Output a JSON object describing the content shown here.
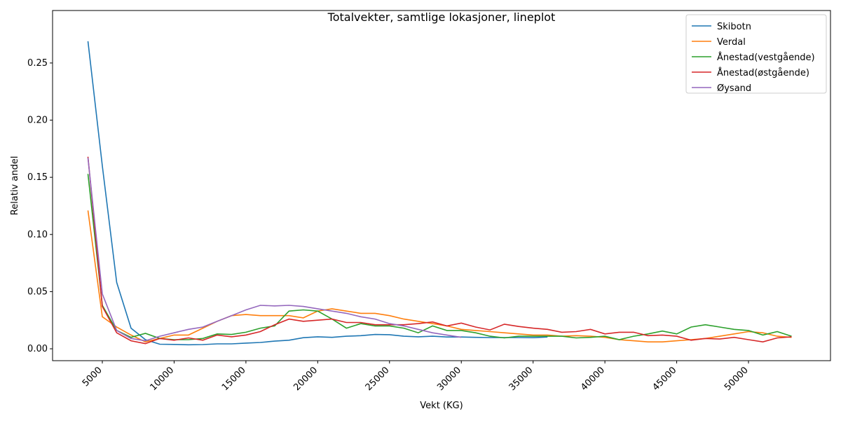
{
  "chart_data": {
    "type": "line",
    "title": "Totalvekter, samtlige lokasjoner, lineplot",
    "x_label": "Vekt (KG)",
    "y_label": "Relativ andel",
    "x": [
      4000,
      5000,
      6000,
      7000,
      8000,
      9000,
      10000,
      11000,
      12000,
      13000,
      14000,
      15000,
      16000,
      17000,
      18000,
      19000,
      20000,
      21000,
      22000,
      23000,
      24000,
      25000,
      26000,
      27000,
      28000,
      29000,
      30000,
      31000,
      32000,
      33000,
      34000,
      35000,
      36000,
      37000,
      38000,
      39000,
      40000,
      41000,
      42000,
      43000,
      44000,
      45000,
      46000,
      47000,
      48000,
      49000,
      50000,
      51000,
      52000,
      53000
    ],
    "series": [
      {
        "name": "Skibotn",
        "color": "#1f77b4",
        "values": [
          0.269,
          0.16,
          0.058,
          0.018,
          0.008,
          0.004,
          0.0038,
          0.0035,
          0.0037,
          0.0043,
          0.0043,
          0.005,
          0.0055,
          0.0067,
          0.0075,
          0.0097,
          0.0105,
          0.01,
          0.011,
          0.0115,
          0.0125,
          0.0123,
          0.011,
          0.0105,
          0.011,
          0.0103,
          0.0103,
          0.01,
          0.0098,
          0.0098,
          0.0098,
          0.0097,
          0.0103,
          null,
          null,
          null,
          null,
          null,
          null,
          null,
          null,
          null,
          null,
          null,
          null,
          null,
          null,
          null,
          null,
          null
        ]
      },
      {
        "name": "Verdal",
        "color": "#ff7f0e",
        "values": [
          0.121,
          0.028,
          0.019,
          0.012,
          0.006,
          0.009,
          0.012,
          0.012,
          0.018,
          0.024,
          0.029,
          0.03,
          0.029,
          0.029,
          0.029,
          0.027,
          0.033,
          0.035,
          0.033,
          0.031,
          0.031,
          0.029,
          0.026,
          0.024,
          0.022,
          0.02,
          0.017,
          0.016,
          0.015,
          0.014,
          0.013,
          0.012,
          0.012,
          0.011,
          0.0115,
          0.011,
          0.01,
          0.008,
          0.007,
          0.006,
          0.006,
          0.007,
          0.008,
          0.009,
          0.011,
          0.013,
          0.015,
          0.014,
          0.011,
          0.01
        ]
      },
      {
        "name": "Ånestad(vestgående)",
        "color": "#2ca02c",
        "values": [
          0.153,
          0.038,
          0.016,
          0.01,
          0.0135,
          0.009,
          0.008,
          0.008,
          0.009,
          0.013,
          0.0125,
          0.0145,
          0.018,
          0.02,
          0.033,
          0.034,
          0.033,
          0.026,
          0.018,
          0.022,
          0.02,
          0.02,
          0.018,
          0.014,
          0.02,
          0.016,
          0.016,
          0.014,
          0.011,
          0.0095,
          0.011,
          0.011,
          0.011,
          0.011,
          0.0095,
          0.01,
          0.011,
          0.008,
          0.011,
          0.013,
          0.0155,
          0.013,
          0.019,
          0.021,
          0.019,
          0.017,
          0.016,
          0.012,
          0.015,
          0.011
        ]
      },
      {
        "name": "Ånestad(østgående)",
        "color": "#d62728",
        "values": [
          0.168,
          0.037,
          0.014,
          0.007,
          0.0045,
          0.009,
          0.0075,
          0.0095,
          0.0075,
          0.012,
          0.0105,
          0.012,
          0.015,
          0.021,
          0.026,
          0.024,
          0.025,
          0.026,
          0.023,
          0.023,
          0.021,
          0.021,
          0.021,
          0.022,
          0.0235,
          0.02,
          0.0225,
          0.019,
          0.0165,
          0.0215,
          0.0195,
          0.018,
          0.017,
          0.0145,
          0.015,
          0.017,
          0.013,
          0.0145,
          0.0145,
          0.0115,
          0.012,
          0.011,
          0.0075,
          0.009,
          0.0085,
          0.01,
          0.008,
          0.006,
          0.0095,
          0.0105
        ]
      },
      {
        "name": "Øysand",
        "color": "#9467bd",
        "values": [
          0.167,
          0.048,
          0.016,
          0.009,
          0.007,
          0.011,
          0.014,
          0.017,
          0.019,
          0.024,
          0.029,
          0.034,
          0.038,
          0.0375,
          0.038,
          0.037,
          0.035,
          0.033,
          0.031,
          0.028,
          0.026,
          0.022,
          0.02,
          0.017,
          0.014,
          0.012,
          0.01,
          null,
          null,
          null,
          null,
          null,
          null,
          null,
          null,
          null,
          null,
          null,
          null,
          null,
          null,
          null,
          null,
          null,
          null,
          null,
          null,
          null,
          null,
          null
        ]
      }
    ],
    "xlim": [
      1535,
      55710
    ],
    "xticks": [
      5000,
      10000,
      15000,
      20000,
      25000,
      30000,
      35000,
      40000,
      45000,
      50000
    ],
    "ylim": [
      -0.0104,
      0.2959
    ],
    "yticks": [
      {
        "value": 0,
        "label": "0.00"
      },
      {
        "value": 0.05,
        "label": "0.05"
      },
      {
        "value": 0.1,
        "label": "0.10"
      },
      {
        "value": 0.15,
        "label": "0.15"
      },
      {
        "value": 0.2,
        "label": "0.20"
      },
      {
        "value": 0.25,
        "label": "0.25"
      }
    ],
    "legend": "upper right",
    "grid": false
  }
}
